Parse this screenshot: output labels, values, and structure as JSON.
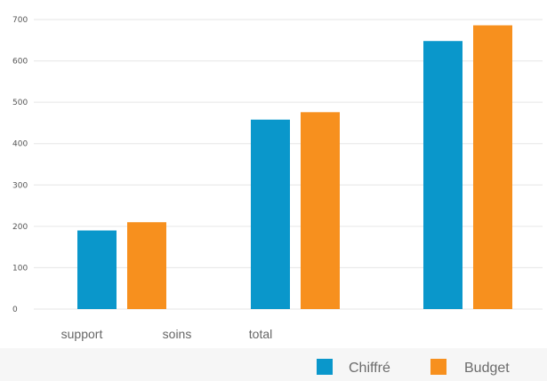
{
  "chart_data": {
    "type": "bar",
    "category_labels": [
      "support",
      "soins",
      "total"
    ],
    "series": [
      {
        "name": "Chiffré",
        "values": [
          190,
          458,
          648
        ]
      },
      {
        "name": "Budget",
        "values": [
          210,
          476,
          686
        ]
      }
    ],
    "ylim": [
      0,
      700
    ],
    "y_ticks": [
      "0",
      "100",
      "200",
      "300",
      "400",
      "500",
      "600",
      "700"
    ],
    "grid": true,
    "legend_position": "bottom-right",
    "colors": {
      "Chiffré": "#0a97cb",
      "Budget": "#f7901e",
      "grid": "#e6e6e6",
      "background": "#ffffff",
      "legend_panel": "#f6f6f6"
    }
  }
}
